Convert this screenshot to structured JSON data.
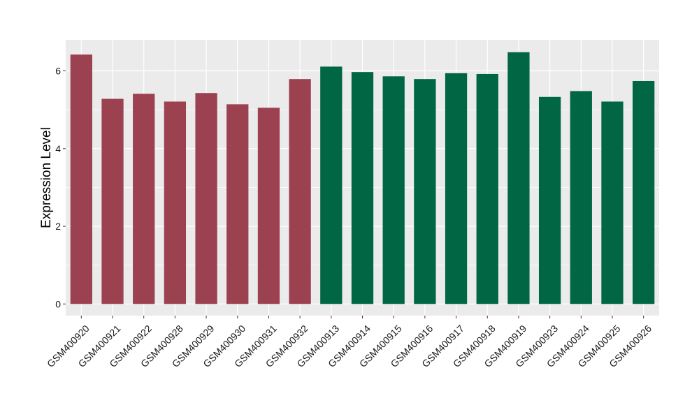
{
  "chart_data": {
    "type": "bar",
    "title": "",
    "xlabel": "",
    "ylabel": "Expression Level",
    "ylim": [
      -0.3,
      6.8
    ],
    "yticks": [
      0,
      2,
      4,
      6
    ],
    "grid": true,
    "legend": "none",
    "categories": [
      "GSM400920",
      "GSM400921",
      "GSM400922",
      "GSM400928",
      "GSM400929",
      "GSM400930",
      "GSM400931",
      "GSM400932",
      "GSM400913",
      "GSM400914",
      "GSM400915",
      "GSM400916",
      "GSM400917",
      "GSM400918",
      "GSM400919",
      "GSM400923",
      "GSM400924",
      "GSM400925",
      "GSM400926"
    ],
    "values": [
      6.42,
      5.28,
      5.41,
      5.21,
      5.43,
      5.14,
      5.05,
      5.79,
      6.11,
      5.97,
      5.86,
      5.79,
      5.94,
      5.92,
      6.48,
      5.33,
      5.48,
      5.21,
      5.74
    ],
    "bar_colors": [
      "#9b4150",
      "#9b4150",
      "#9b4150",
      "#9b4150",
      "#9b4150",
      "#9b4150",
      "#9b4150",
      "#9b4150",
      "#006644",
      "#006644",
      "#006644",
      "#006644",
      "#006644",
      "#006644",
      "#006644",
      "#006644",
      "#006644",
      "#006644",
      "#006644"
    ],
    "panel_color": "#ebebeb",
    "grid_color": "#ffffff"
  }
}
